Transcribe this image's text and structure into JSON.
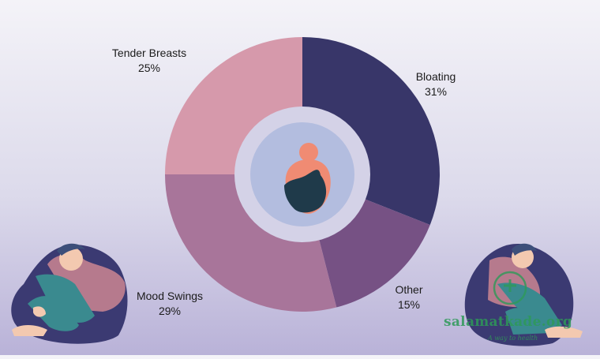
{
  "colors": {
    "bloating": "#383669",
    "other": "#765184",
    "mood_swings": "#a8759a",
    "tender_breasts": "#d699ab",
    "inner_ring": "#d4d2e7",
    "inner_circle": "#b3bddf",
    "figure_skin": "#f08b73",
    "figure_hair": "#1f3a4a"
  },
  "chart_data": {
    "type": "pie",
    "style": "donut",
    "start_angle_deg": 0,
    "direction": "clockwise",
    "categories": [
      "Bloating",
      "Other",
      "Mood Swings",
      "Tender Breasts"
    ],
    "values": [
      31,
      15,
      29,
      25
    ],
    "labels": [
      "31%",
      "15%",
      "29%",
      "25%"
    ],
    "colors": [
      "#383669",
      "#765184",
      "#a8759a",
      "#d699ab"
    ],
    "center_icon": "woman-head-icon",
    "decorations": [
      "sitting-woman-illustration-left",
      "sitting-woman-illustration-right"
    ]
  },
  "watermark": {
    "text": "salamatkade.org",
    "subtitle": "A way to health",
    "icon": "medical-heart-icon"
  }
}
